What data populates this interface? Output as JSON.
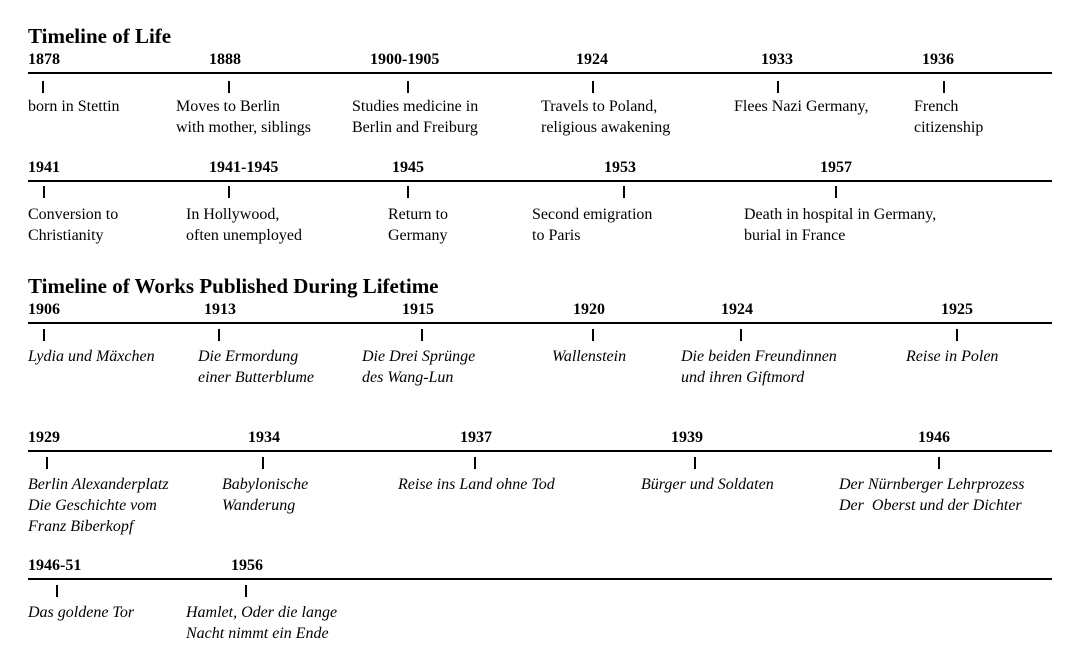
{
  "life_heading": "Timeline of Life",
  "works_heading": "Timeline of Works Published During Lifetime",
  "life_rows": [
    [
      {
        "year": "1878",
        "desc": "born in Stettin"
      },
      {
        "year": "1888",
        "desc": "Moves to Berlin\nwith mother, siblings"
      },
      {
        "year": "1900-1905",
        "desc": "Studies medicine in\nBerlin and Freiburg"
      },
      {
        "year": "1924",
        "desc": "Travels to Poland,\nreligious awakening"
      },
      {
        "year": "1933",
        "desc": "Flees Nazi Germany,"
      },
      {
        "year": "1936",
        "desc": "French\ncitizenship"
      }
    ],
    [
      {
        "year": "1941",
        "desc": "Conversion to\nChristianity"
      },
      {
        "year": "1941-1945",
        "desc": "In Hollywood,\noften unemployed"
      },
      {
        "year": "1945",
        "desc": "Return to\nGermany"
      },
      {
        "year": "1953",
        "desc": "Second emigration\nto Paris"
      },
      {
        "year": "1957",
        "desc": "Death in hospital in Germany,\nburial in France"
      }
    ]
  ],
  "works_rows": [
    [
      {
        "year": "1906",
        "desc": "Lydia und Mäxchen"
      },
      {
        "year": "1913",
        "desc": "Die Ermordung\neiner Butterblume"
      },
      {
        "year": "1915",
        "desc": "Die Drei Sprünge\ndes Wang-Lun"
      },
      {
        "year": "1920",
        "desc": "Wallenstein"
      },
      {
        "year": "1924",
        "desc": "Die beiden Freundinnen\nund ihren Giftmord"
      },
      {
        "year": "1925",
        "desc": "Reise in Polen"
      }
    ],
    [
      {
        "year": "1929",
        "desc": "Berlin Alexanderplatz\nDie Geschichte vom\nFranz Biberkopf"
      },
      {
        "year": "1934",
        "desc": "Babylonische\nWanderung"
      },
      {
        "year": "1937",
        "desc": "Reise ins Land ohne Tod"
      },
      {
        "year": "1939",
        "desc": "Bürger und Soldaten"
      },
      {
        "year": "1946",
        "desc": "Der Nürnberger Lehrprozess\nDer  Oberst und der Dichter"
      }
    ],
    [
      {
        "year": "1946-51",
        "desc": "Das goldene Tor"
      },
      {
        "year": "1956",
        "desc": "Hamlet, Oder die lange\nNacht nimmt ein Ende"
      }
    ]
  ]
}
